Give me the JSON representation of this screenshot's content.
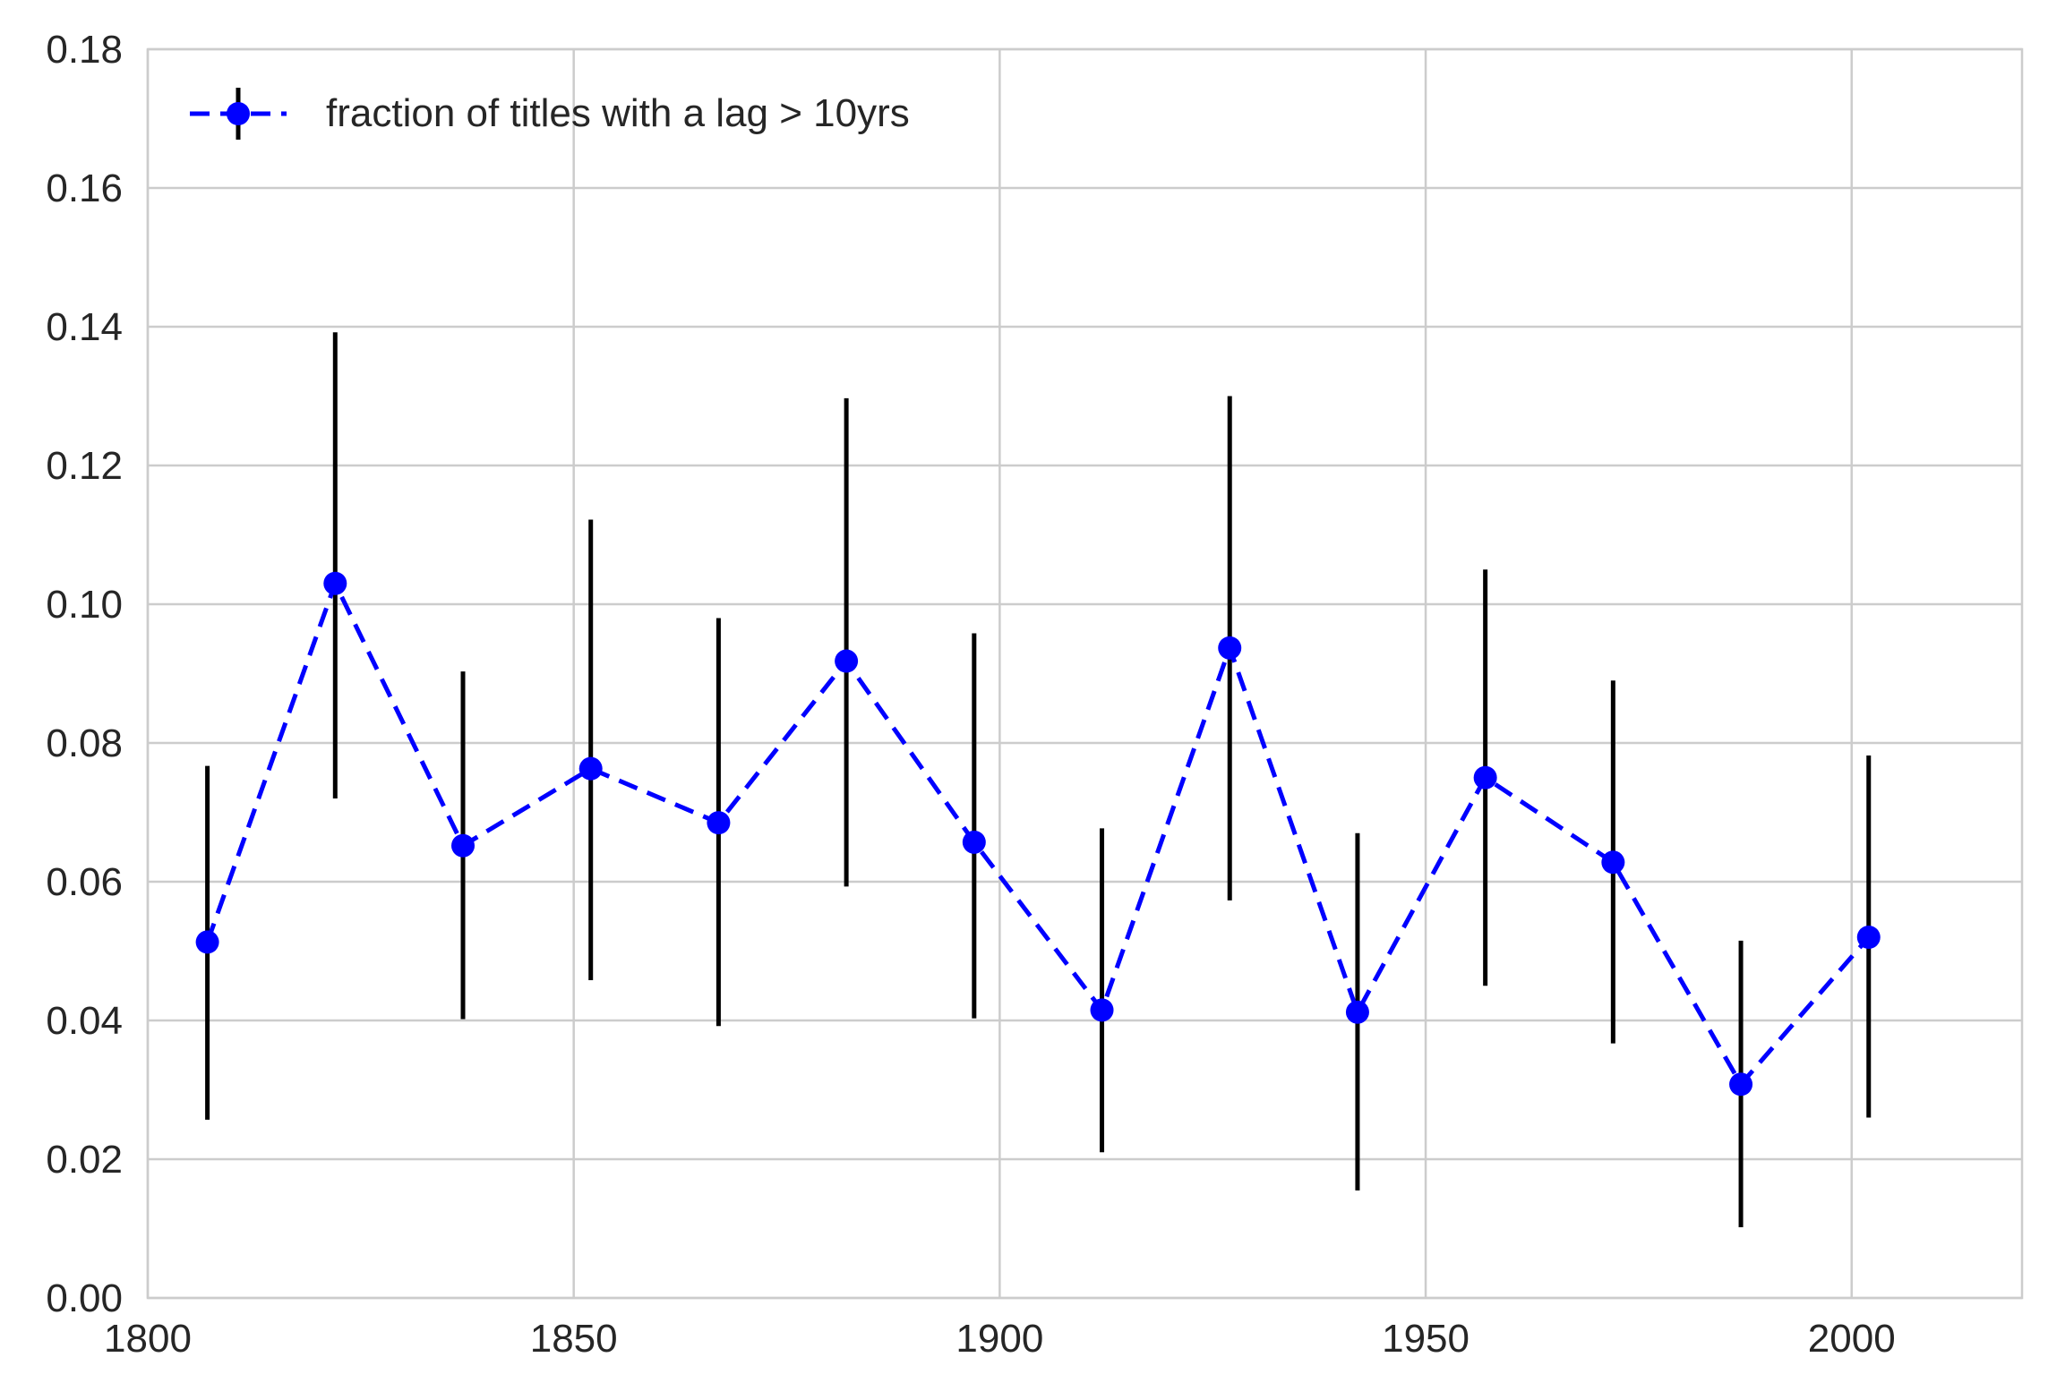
{
  "chart_data": {
    "type": "scatter",
    "style": "errorbar with dashed connecting line",
    "grid": true,
    "legend": {
      "position": "top-left",
      "entries": [
        "fraction of titles with a lag > 10yrs"
      ]
    },
    "colors": {
      "line": "#0000ff",
      "marker": "#0000ff",
      "errorbar": "#000000",
      "grid": "#cccccc",
      "axes": "#cccccc",
      "text": "#262626"
    },
    "xlim": [
      1800,
      2020
    ],
    "ylim": [
      0,
      0.18
    ],
    "xticks": [
      "1800",
      "1850",
      "1900",
      "1950",
      "2000"
    ],
    "yticks": [
      "0.00",
      "0.02",
      "0.04",
      "0.06",
      "0.08",
      "0.10",
      "0.12",
      "0.14",
      "0.16",
      "0.18"
    ],
    "title": "",
    "xlabel": "",
    "ylabel": "",
    "series": [
      {
        "name": "fraction of titles with a lag > 10yrs",
        "x": [
          1807,
          1822,
          1837,
          1852,
          1867,
          1882,
          1897,
          1912,
          1927,
          1942,
          1957,
          1972,
          1987,
          2002
        ],
        "y": [
          0.0513,
          0.103,
          0.0652,
          0.0763,
          0.0685,
          0.0918,
          0.0657,
          0.0415,
          0.0937,
          0.0412,
          0.075,
          0.0628,
          0.0308,
          0.052
        ],
        "yerr_low": [
          0.0257,
          0.072,
          0.0402,
          0.0458,
          0.0392,
          0.0593,
          0.0403,
          0.021,
          0.0573,
          0.0155,
          0.045,
          0.0367,
          0.0102,
          0.026
        ],
        "yerr_high": [
          0.0767,
          0.1392,
          0.0903,
          0.1122,
          0.098,
          0.1297,
          0.0958,
          0.0677,
          0.13,
          0.067,
          0.105,
          0.089,
          0.0515,
          0.0782
        ]
      }
    ]
  }
}
